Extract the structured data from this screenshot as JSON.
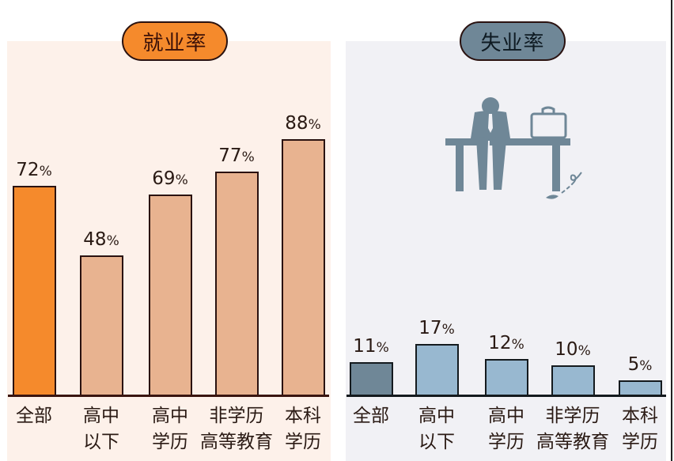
{
  "left_panel": {
    "title": "就业率",
    "bg_color": "#fdf1ea",
    "pill_color": "#f58a2c",
    "bars": [
      {
        "category": "全部",
        "value": "72",
        "color": "#f58a2c"
      },
      {
        "category": "高中\n以下",
        "value": "48",
        "color": "#e8b390"
      },
      {
        "category": "高中\n学历",
        "value": "69",
        "color": "#e8b390"
      },
      {
        "category": "非学历\n高等教育",
        "value": "77",
        "color": "#e8b390"
      },
      {
        "category": "本科\n学历",
        "value": "88",
        "color": "#e8b390"
      }
    ]
  },
  "right_panel": {
    "title": "失业率",
    "bg_color": "#f1f1f5",
    "pill_color": "#6f8797",
    "illustration": "person-sitting-dejected-on-bench-with-briefcase",
    "bars": [
      {
        "category": "全部",
        "value": "11",
        "color": "#6f8797"
      },
      {
        "category": "高中\n以下",
        "value": "17",
        "color": "#98b8d0"
      },
      {
        "category": "高中\n学历",
        "value": "12",
        "color": "#98b8d0"
      },
      {
        "category": "非学历\n高等教育",
        "value": "10",
        "color": "#98b8d0"
      },
      {
        "category": "本科\n学历",
        "value": "5",
        "color": "#98b8d0"
      }
    ]
  },
  "pct_symbol": "%",
  "chart_data": [
    {
      "type": "bar",
      "title": "就业率",
      "categories": [
        "全部",
        "高中以下",
        "高中学历",
        "非学历高等教育",
        "本科学历"
      ],
      "values": [
        72,
        48,
        69,
        77,
        88
      ],
      "unit": "%",
      "xlabel": "",
      "ylabel": "",
      "grid": false,
      "highlight_index": 0
    },
    {
      "type": "bar",
      "title": "失业率",
      "categories": [
        "全部",
        "高中以下",
        "高中学历",
        "非学历高等教育",
        "本科学历"
      ],
      "values": [
        11,
        17,
        12,
        10,
        5
      ],
      "unit": "%",
      "xlabel": "",
      "ylabel": "",
      "grid": false,
      "highlight_index": 0
    }
  ]
}
